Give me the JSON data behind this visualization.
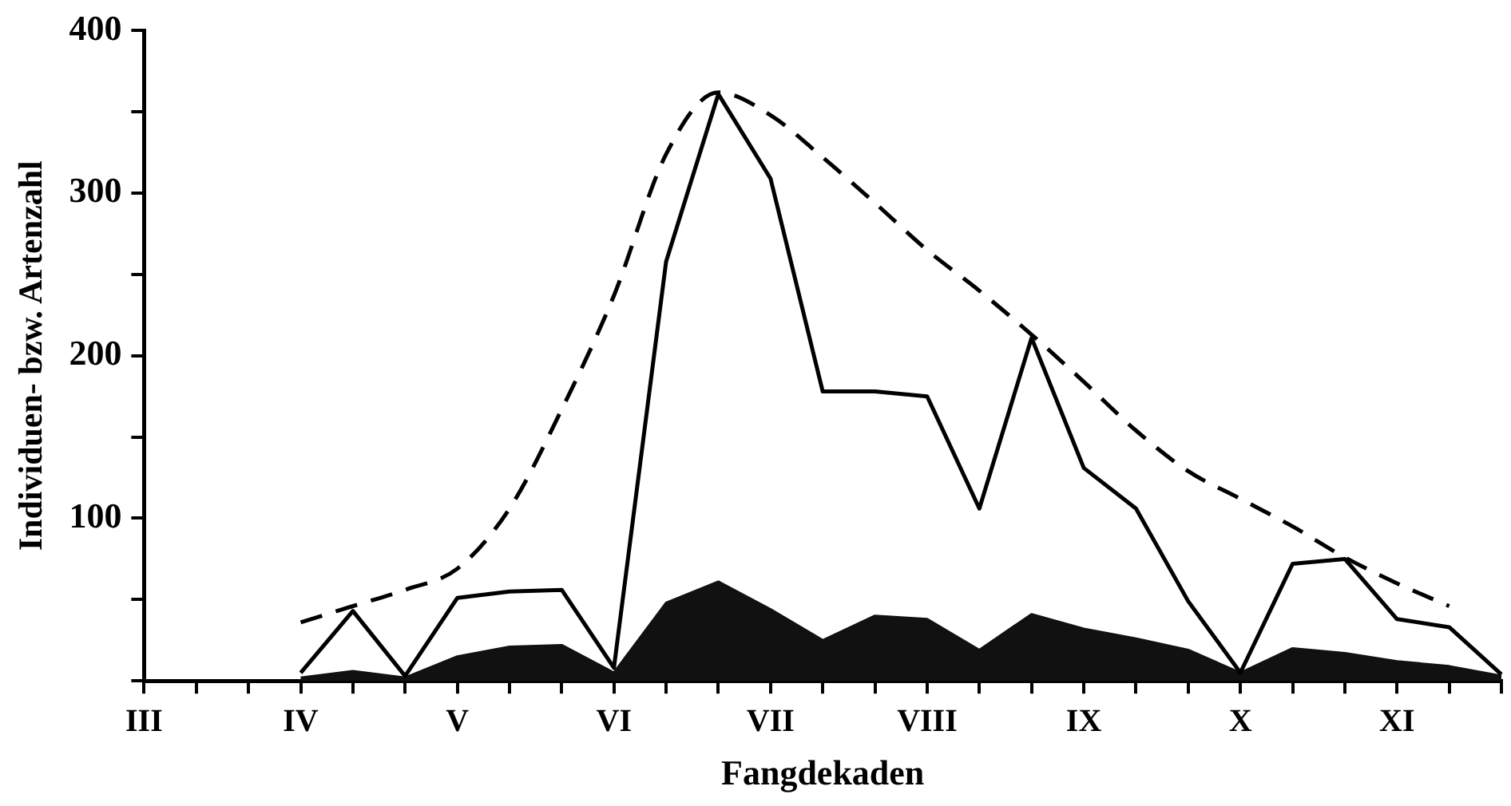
{
  "chart_data": {
    "type": "line",
    "xlabel": "Fangdekaden",
    "ylabel": "Individuen- bzw. Artenzahl",
    "categories": [
      "III",
      null,
      null,
      "IV",
      null,
      null,
      "V",
      null,
      null,
      "VI",
      null,
      null,
      "VII",
      null,
      null,
      "VIII",
      null,
      null,
      "IX",
      null,
      null,
      "X",
      null,
      null,
      "XI",
      null,
      null
    ],
    "ylim": [
      0,
      400
    ],
    "yticks": [
      {
        "value": 0,
        "label": null
      },
      {
        "value": 50,
        "label": null
      },
      100,
      {
        "value": 150,
        "label": null
      },
      200,
      {
        "value": 250,
        "label": null
      },
      300,
      {
        "value": 350,
        "label": null
      },
      400
    ],
    "grid": false,
    "legend": false,
    "marker": "none",
    "series": [
      {
        "type": "area",
        "color": "#111111",
        "values": [
          null,
          null,
          null,
          2,
          6,
          2,
          15,
          21,
          22,
          5,
          48,
          61,
          44,
          25,
          40,
          38,
          19,
          41,
          32,
          26,
          19,
          5,
          20,
          17,
          12,
          9,
          3
        ]
      },
      {
        "type": "line",
        "color": "#000000",
        "line_style": "solid",
        "values": [
          null,
          null,
          null,
          5,
          43,
          3,
          51,
          55,
          56,
          8,
          258,
          361,
          309,
          178,
          178,
          175,
          106,
          211,
          131,
          106,
          49,
          5,
          72,
          75,
          38,
          33,
          4
        ]
      },
      {
        "type": "line",
        "color": "#000000",
        "line_style": "dashed",
        "values": [
          null,
          null,
          null,
          36,
          46,
          56,
          69,
          106,
          167,
          237,
          324,
          362,
          348,
          322,
          294,
          265,
          240,
          213,
          184,
          154,
          129,
          112,
          95,
          76,
          60,
          46,
          null
        ]
      }
    ]
  }
}
